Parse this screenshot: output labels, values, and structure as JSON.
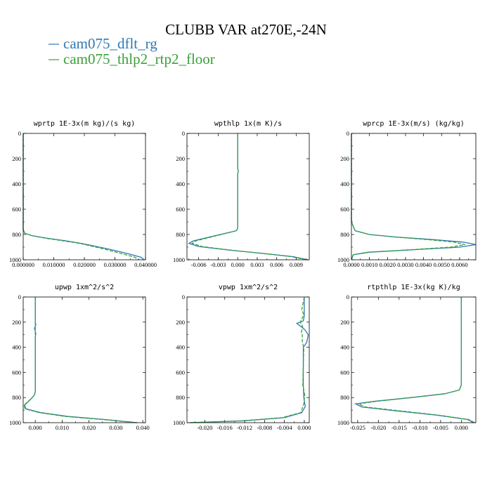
{
  "title": "CLUBB VAR at270E,-24N",
  "legend": [
    {
      "label": "cam075_dflt_rg",
      "color": "#2e78b5"
    },
    {
      "label": "cam075_thlp2_rtp2_floor",
      "color": "#3aa03a"
    }
  ],
  "chart_data": [
    {
      "type": "line",
      "title": "wprtp  1E-3x(m kg)/(s kg)",
      "xlim": [
        0,
        0.04
      ],
      "ylim": [
        1000,
        0
      ],
      "xticks": [
        0,
        0.01,
        0.02,
        0.03,
        0.04
      ],
      "xtick_labels": [
        "0.000000",
        "0.010000",
        "0.020000",
        "0.030000",
        "0.040000"
      ],
      "yticks": [
        0,
        200,
        400,
        600,
        800,
        1000
      ],
      "ytick_labels": [
        "0",
        "200",
        "400",
        "600",
        "800",
        "1000"
      ],
      "series": [
        {
          "color": "#2e78b5",
          "x": [
            0,
            0,
            0,
            0.0005,
            0.003,
            0.008,
            0.014,
            0.019,
            0.023,
            0.028,
            0.034,
            0.0385,
            0.0395
          ],
          "y": [
            0,
            400,
            760,
            790,
            810,
            830,
            850,
            870,
            890,
            915,
            950,
            980,
            1000
          ]
        },
        {
          "color": "#3aa03a",
          "x": [
            0,
            0,
            0,
            0.0005,
            0.003,
            0.0075,
            0.013,
            0.0185,
            0.022,
            0.0265,
            0.032,
            0.0365,
            0.038
          ],
          "y": [
            0,
            400,
            760,
            790,
            810,
            830,
            850,
            870,
            890,
            915,
            950,
            980,
            1000
          ]
        }
      ]
    },
    {
      "type": "line",
      "title": "wpthlp  1x(m K)/s",
      "xlim": [
        -0.0078,
        0.011
      ],
      "ylim": [
        1000,
        0
      ],
      "xticks": [
        -0.006,
        -0.003,
        0,
        0.003,
        0.006,
        0.009
      ],
      "xtick_labels": [
        "-0.006",
        "-0.003",
        "0.000",
        "0.003",
        "0.006",
        "0.009"
      ],
      "yticks": [
        0,
        200,
        400,
        600,
        800,
        1000
      ],
      "ytick_labels": [
        "0",
        "200",
        "400",
        "600",
        "800",
        "1000"
      ],
      "series": [
        {
          "color": "#2e78b5",
          "x": [
            0,
            0,
            0.0001,
            0,
            0,
            0,
            -0.0002,
            -0.0035,
            -0.0068,
            -0.0075,
            -0.006,
            -0.001,
            0.004,
            0.0085,
            0.0108
          ],
          "y": [
            0,
            280,
            300,
            320,
            600,
            750,
            770,
            810,
            850,
            870,
            895,
            925,
            950,
            975,
            1000
          ]
        },
        {
          "color": "#3aa03a",
          "x": [
            0,
            0,
            0.0001,
            0,
            0,
            0,
            -0.0002,
            -0.0033,
            -0.0064,
            -0.007,
            -0.0055,
            -0.0008,
            0.0038,
            0.0082,
            0.0105
          ],
          "y": [
            0,
            280,
            300,
            320,
            600,
            750,
            770,
            810,
            850,
            870,
            895,
            925,
            950,
            975,
            1000
          ]
        }
      ]
    },
    {
      "type": "line",
      "title": "wprcp  1E-3x(m/s) (kg/kg)",
      "xlim": [
        0,
        0.0069
      ],
      "ylim": [
        1000,
        0
      ],
      "xticks": [
        0,
        0.001,
        0.002,
        0.003,
        0.004,
        0.005,
        0.006
      ],
      "xtick_labels": [
        "0.0000",
        "0.0010",
        "0.0020",
        "0.0030",
        "0.0040",
        "0.0050",
        "0.0060"
      ],
      "yticks": [
        0,
        200,
        400,
        600,
        800,
        1000
      ],
      "ytick_labels": [
        "0",
        "200",
        "400",
        "600",
        "800",
        "1000"
      ],
      "series": [
        {
          "color": "#2e78b5",
          "x": [
            0,
            0,
            0.0002,
            0.001,
            0.0025,
            0.0045,
            0.0062,
            0.0069,
            0.006,
            0.0035,
            0.001,
            0.0001,
            0
          ],
          "y": [
            0,
            700,
            770,
            800,
            820,
            840,
            860,
            880,
            900,
            920,
            940,
            960,
            1000
          ]
        },
        {
          "color": "#3aa03a",
          "x": [
            0,
            0,
            0.0002,
            0.001,
            0.0024,
            0.0042,
            0.0057,
            0.0063,
            0.0055,
            0.0033,
            0.0009,
            0.0001,
            0
          ],
          "y": [
            0,
            700,
            770,
            800,
            820,
            840,
            860,
            880,
            900,
            920,
            940,
            960,
            1000
          ]
        }
      ]
    },
    {
      "type": "line",
      "title": "upwp  1xm^2/s^2",
      "xlim": [
        -0.0045,
        0.041
      ],
      "ylim": [
        1000,
        0
      ],
      "xticks": [
        0,
        0.01,
        0.02,
        0.03,
        0.04
      ],
      "xtick_labels": [
        "0.000",
        "0.010",
        "0.020",
        "0.030",
        "0.040"
      ],
      "yticks": [
        0,
        200,
        400,
        600,
        800,
        1000
      ],
      "ytick_labels": [
        "0",
        "200",
        "400",
        "600",
        "800",
        "1000"
      ],
      "series": [
        {
          "color": "#2e78b5",
          "x": [
            0,
            0,
            0.0002,
            -0.0003,
            0.0002,
            0,
            0,
            -0.0003,
            -0.002,
            -0.004,
            -0.0035,
            0.002,
            0.012,
            0.026,
            0.038
          ],
          "y": [
            0,
            200,
            220,
            250,
            290,
            320,
            750,
            780,
            820,
            860,
            890,
            920,
            950,
            975,
            1000
          ]
        },
        {
          "color": "#3aa03a",
          "x": [
            0,
            0,
            0,
            0,
            0,
            0,
            0,
            -0.0003,
            -0.0021,
            -0.0042,
            -0.0038,
            0.0015,
            0.011,
            0.025,
            0.0375
          ],
          "y": [
            0,
            200,
            220,
            250,
            290,
            320,
            750,
            780,
            820,
            860,
            890,
            920,
            950,
            975,
            1000
          ]
        }
      ]
    },
    {
      "type": "line",
      "title": "vpwp  1xm^2/s^2",
      "xlim": [
        -0.0236,
        0.001
      ],
      "ylim": [
        1000,
        0
      ],
      "xticks": [
        -0.02,
        -0.016,
        -0.012,
        -0.008,
        -0.004,
        0
      ],
      "xtick_labels": [
        "-0.020",
        "-0.016",
        "-0.012",
        "-0.008",
        "-0.004",
        "0.000"
      ],
      "yticks": [
        0,
        200,
        400,
        600,
        800,
        1000
      ],
      "ytick_labels": [
        "0",
        "200",
        "400",
        "600",
        "800",
        "1000"
      ],
      "series": [
        {
          "color": "#2e78b5",
          "x": [
            0,
            0,
            -0.0002,
            -0.0015,
            -0.0005,
            0.0001,
            0.0008,
            0.0005,
            -0.0002,
            -0.0002,
            -0.0001,
            0.0002,
            -0.0005,
            -0.004,
            -0.012,
            -0.023
          ],
          "y": [
            0,
            150,
            190,
            210,
            240,
            260,
            300,
            360,
            400,
            700,
            800,
            870,
            920,
            960,
            985,
            1000
          ]
        },
        {
          "color": "#3aa03a",
          "x": [
            0,
            -0.0005,
            -0.0001,
            -0.0008,
            -0.0003,
            -0.0006,
            -0.0004,
            -0.0004,
            -0.0001,
            -0.0003,
            0.0001,
            -0.0001,
            -0.0007,
            -0.0045,
            -0.0125,
            -0.023
          ],
          "y": [
            0,
            100,
            140,
            200,
            240,
            280,
            300,
            360,
            400,
            700,
            780,
            850,
            920,
            960,
            985,
            1000
          ]
        }
      ]
    },
    {
      "type": "line",
      "title": "rtpthlp  1E-3x(kg K)/kg",
      "xlim": [
        -0.0265,
        0.0035
      ],
      "ylim": [
        1000,
        0
      ],
      "xticks": [
        -0.025,
        -0.02,
        -0.015,
        -0.01,
        -0.005,
        0
      ],
      "xtick_labels": [
        "-0.025",
        "-0.020",
        "-0.015",
        "-0.010",
        "-0.005",
        "0.000"
      ],
      "yticks": [
        0,
        200,
        400,
        600,
        800,
        1000
      ],
      "ytick_labels": [
        "0",
        "200",
        "400",
        "600",
        "800",
        "1000"
      ],
      "series": [
        {
          "color": "#2e78b5",
          "x": [
            0,
            0,
            -0.0005,
            -0.004,
            -0.012,
            -0.021,
            -0.0255,
            -0.024,
            -0.016,
            -0.006,
            0.0015,
            0.003
          ],
          "y": [
            0,
            700,
            740,
            770,
            800,
            830,
            850,
            875,
            905,
            940,
            975,
            1000
          ]
        },
        {
          "color": "#3aa03a",
          "x": [
            0,
            0,
            -0.0005,
            -0.004,
            -0.012,
            -0.0205,
            -0.0248,
            -0.0232,
            -0.015,
            -0.0055,
            0.0018,
            0.0032
          ],
          "y": [
            0,
            700,
            740,
            770,
            800,
            830,
            850,
            875,
            905,
            940,
            975,
            1000
          ]
        }
      ]
    }
  ]
}
